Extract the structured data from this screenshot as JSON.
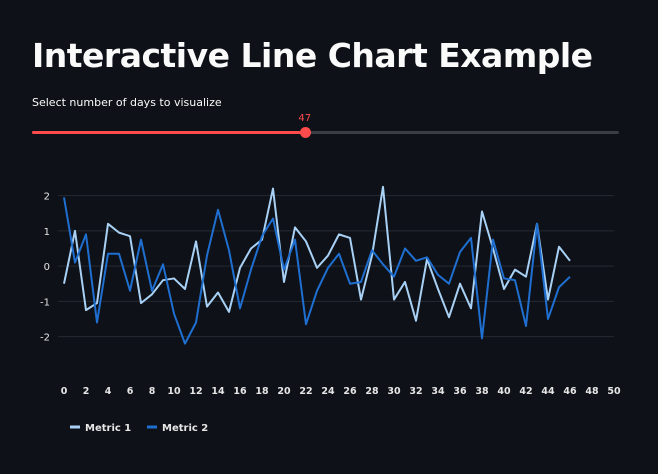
{
  "page": {
    "title": "Interactive Line Chart Example"
  },
  "slider": {
    "label": "Select number of days to visualize",
    "value": 47,
    "min": 1,
    "max": 100,
    "accent_color": "#ff4b4b"
  },
  "chart_data": {
    "type": "line",
    "x": [
      0,
      1,
      2,
      3,
      4,
      5,
      6,
      7,
      8,
      9,
      10,
      11,
      12,
      13,
      14,
      15,
      16,
      17,
      18,
      19,
      20,
      21,
      22,
      23,
      24,
      25,
      26,
      27,
      28,
      29,
      30,
      31,
      32,
      33,
      34,
      35,
      36,
      37,
      38,
      39,
      40,
      41,
      42,
      43,
      44,
      45,
      46
    ],
    "series": [
      {
        "name": "Metric 1",
        "color": "#a8d1f5",
        "values": [
          -0.5,
          1.0,
          -1.25,
          -1.05,
          1.2,
          0.95,
          0.85,
          -1.05,
          -0.8,
          -0.4,
          -0.35,
          -0.65,
          0.7,
          -1.15,
          -0.75,
          -1.3,
          -0.05,
          0.5,
          0.75,
          2.2,
          -0.45,
          1.1,
          0.7,
          -0.05,
          0.3,
          0.9,
          0.8,
          -0.95,
          0.3,
          2.25,
          -0.95,
          -0.45,
          -1.55,
          0.2,
          -0.65,
          -1.45,
          -0.5,
          -1.2,
          1.55,
          0.5,
          -0.65,
          -0.1,
          -0.3,
          1.2,
          -0.95,
          0.55,
          0.15
        ]
      },
      {
        "name": "Metric 2",
        "color": "#1f6fd1",
        "values": [
          1.95,
          0.1,
          0.9,
          -1.6,
          0.35,
          0.35,
          -0.7,
          0.75,
          -0.7,
          0.05,
          -1.35,
          -2.2,
          -1.6,
          0.3,
          1.6,
          0.45,
          -1.2,
          -0.1,
          0.85,
          1.35,
          -0.1,
          0.75,
          -1.65,
          -0.7,
          -0.05,
          0.35,
          -0.5,
          -0.45,
          0.45,
          0.05,
          -0.3,
          0.5,
          0.15,
          0.25,
          -0.25,
          -0.5,
          0.4,
          0.8,
          -2.05,
          0.75,
          -0.35,
          -0.4,
          -1.7,
          1.2,
          -1.5,
          -0.6,
          -0.3
        ]
      }
    ],
    "xlim": [
      0,
      50
    ],
    "ylim": [
      -2.75,
      2.5
    ],
    "xticks": [
      0,
      2,
      4,
      6,
      8,
      10,
      12,
      14,
      16,
      18,
      20,
      22,
      24,
      26,
      28,
      30,
      32,
      34,
      36,
      38,
      40,
      42,
      44,
      46,
      48,
      50
    ],
    "yticks": [
      -2,
      -1,
      0,
      1,
      2
    ],
    "grid": "horizontal",
    "legend_position": "bottom-left"
  }
}
